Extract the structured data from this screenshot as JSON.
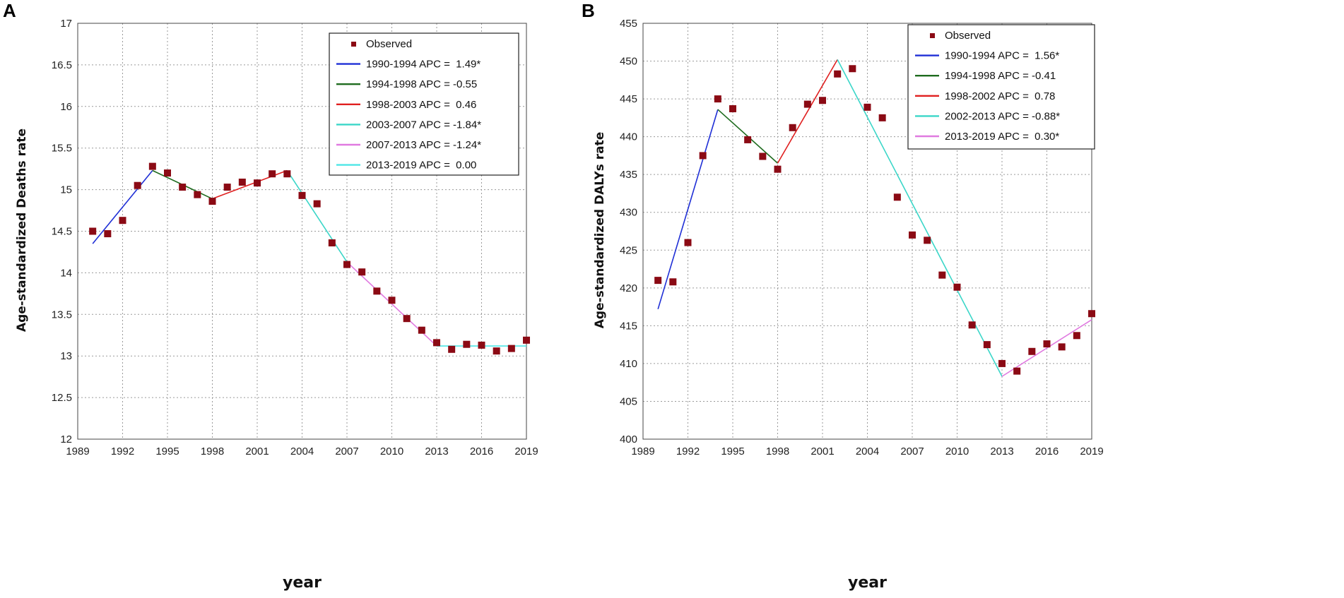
{
  "chart_data": [
    {
      "panel": "A",
      "type": "line",
      "xlabel": "year",
      "ylabel": "Age-standardized Deaths rate",
      "xlim": [
        1989,
        2019
      ],
      "ylim": [
        12,
        17
      ],
      "xticks": [
        "1989",
        "1992",
        "1995",
        "1998",
        "2001",
        "2004",
        "2007",
        "2010",
        "2013",
        "2016",
        "2019"
      ],
      "yticks": [
        "12",
        "12.5",
        "13",
        "13.5",
        "14",
        "14.5",
        "15",
        "15.5",
        "16",
        "16.5",
        "17"
      ],
      "grid": true,
      "legend_position": "top-right",
      "observed_label": "Observed",
      "observed_color": "#8b0a14",
      "observed": {
        "x": [
          1990,
          1991,
          1992,
          1993,
          1994,
          1995,
          1996,
          1997,
          1998,
          1999,
          2000,
          2001,
          2002,
          2003,
          2004,
          2005,
          2006,
          2007,
          2008,
          2009,
          2010,
          2011,
          2012,
          2013,
          2014,
          2015,
          2016,
          2017,
          2018,
          2019
        ],
        "y": [
          14.5,
          14.47,
          14.63,
          15.05,
          15.28,
          15.2,
          15.03,
          14.94,
          14.86,
          15.03,
          15.09,
          15.08,
          15.19,
          15.19,
          14.93,
          14.83,
          14.36,
          14.1,
          14.01,
          13.78,
          13.67,
          13.45,
          13.31,
          13.16,
          13.08,
          13.14,
          13.13,
          13.06,
          13.09,
          13.19
        ]
      },
      "series": [
        {
          "name": "1990-1994 APC =  1.49*",
          "color": "#1f2fd6",
          "x": [
            1990,
            1994
          ],
          "y": [
            14.35,
            15.23
          ]
        },
        {
          "name": "1994-1998 APC = -0.55",
          "color": "#1e6b1e",
          "x": [
            1994,
            1998
          ],
          "y": [
            15.23,
            14.89
          ]
        },
        {
          "name": "1998-2003 APC =  0.46",
          "color": "#e02020",
          "x": [
            1998,
            2003
          ],
          "y": [
            14.89,
            15.23
          ]
        },
        {
          "name": "2003-2007 APC = -1.84*",
          "color": "#3ad6c8",
          "x": [
            2003,
            2007
          ],
          "y": [
            15.23,
            14.13
          ]
        },
        {
          "name": "2007-2013 APC = -1.24*",
          "color": "#e07ae0",
          "x": [
            2007,
            2013
          ],
          "y": [
            14.13,
            13.12
          ]
        },
        {
          "name": "2013-2019 APC =  0.00",
          "color": "#4ee6e6",
          "x": [
            2013,
            2019
          ],
          "y": [
            13.12,
            13.12
          ]
        }
      ]
    },
    {
      "panel": "B",
      "type": "line",
      "xlabel": "year",
      "ylabel": "Age-standardized DALYs rate",
      "xlim": [
        1989,
        2019
      ],
      "ylim": [
        400,
        455
      ],
      "xticks": [
        "1989",
        "1992",
        "1995",
        "1998",
        "2001",
        "2004",
        "2007",
        "2010",
        "2013",
        "2016",
        "2019"
      ],
      "yticks": [
        "400",
        "405",
        "410",
        "415",
        "420",
        "425",
        "430",
        "435",
        "440",
        "445",
        "450",
        "455"
      ],
      "grid": true,
      "legend_position": "top-right",
      "observed_label": "Observed",
      "observed_color": "#8b0a14",
      "observed": {
        "x": [
          1990,
          1991,
          1992,
          1993,
          1994,
          1995,
          1996,
          1997,
          1998,
          1999,
          2000,
          2001,
          2002,
          2003,
          2004,
          2005,
          2006,
          2007,
          2008,
          2009,
          2010,
          2011,
          2012,
          2013,
          2014,
          2015,
          2016,
          2017,
          2018,
          2019
        ],
        "y": [
          421,
          420.8,
          426,
          437.5,
          445,
          443.7,
          439.6,
          437.4,
          435.7,
          441.2,
          444.3,
          444.8,
          448.3,
          449,
          443.9,
          442.5,
          432,
          427,
          426.3,
          421.7,
          420.1,
          415.1,
          412.5,
          410,
          409,
          411.6,
          412.6,
          412.2,
          413.7,
          416.6
        ]
      },
      "series": [
        {
          "name": "1990-1994 APC =  1.56*",
          "color": "#1f2fd6",
          "x": [
            1990,
            1994
          ],
          "y": [
            417.2,
            443.6
          ]
        },
        {
          "name": "1994-1998 APC = -0.41",
          "color": "#1e6b1e",
          "x": [
            1994,
            1998
          ],
          "y": [
            443.6,
            436.5
          ]
        },
        {
          "name": "1998-2002 APC =  0.78",
          "color": "#e02020",
          "x": [
            1998,
            2002
          ],
          "y": [
            436.5,
            450.2
          ]
        },
        {
          "name": "2002-2013 APC = -0.88*",
          "color": "#3ad6c8",
          "x": [
            2002,
            2013
          ],
          "y": [
            450.2,
            408.3
          ]
        },
        {
          "name": "2013-2019 APC =  0.30*",
          "color": "#e07ae0",
          "x": [
            2013,
            2019
          ],
          "y": [
            408.3,
            415.8
          ]
        }
      ]
    }
  ]
}
